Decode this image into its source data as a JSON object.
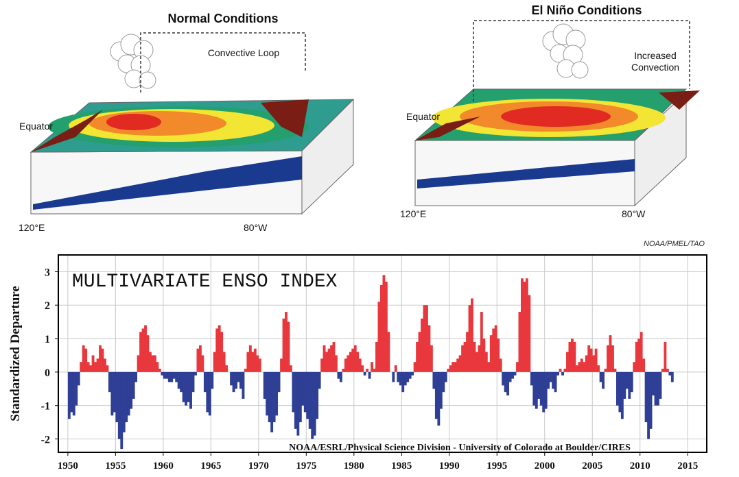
{
  "diagrams": [
    {
      "title": "Normal Conditions",
      "loop_label": [
        "Convective Loop"
      ],
      "equator_label": "Equator",
      "west_label": "120°E",
      "east_label": "80°W"
    },
    {
      "title": "El Niño Conditions",
      "loop_label": [
        "Increased",
        "Convection"
      ],
      "equator_label": "Equator",
      "west_label": "120°E",
      "east_label": "80°W"
    }
  ],
  "source": "NOAA/PMEL/TAO",
  "chart_data": {
    "type": "bar",
    "title": "MULTIVARIATE ENSO INDEX",
    "y_label": "Standardized Departure",
    "annotation": "NOAA/ESRL/Physical Science Division - University of Colorado at Boulder/CIRES",
    "color_positive": "#e8383d",
    "color_negative": "#2e3f95",
    "grid": true,
    "xlim": [
      1949,
      2017
    ],
    "ylim": [
      -2.4,
      3.5
    ],
    "xticks": [
      1950,
      1955,
      1960,
      1965,
      1970,
      1975,
      1980,
      1985,
      1990,
      1995,
      2000,
      2005,
      2010,
      2015
    ],
    "yticks": [
      -2,
      -1,
      0,
      1,
      2,
      3
    ],
    "x": [
      1950,
      1950.25,
      1950.5,
      1950.75,
      1951,
      1951.25,
      1951.5,
      1951.75,
      1952,
      1952.25,
      1952.5,
      1952.75,
      1953,
      1953.25,
      1953.5,
      1953.75,
      1954,
      1954.25,
      1954.5,
      1954.75,
      1955,
      1955.25,
      1955.5,
      1955.75,
      1956,
      1956.25,
      1956.5,
      1956.75,
      1957,
      1957.25,
      1957.5,
      1957.75,
      1958,
      1958.25,
      1958.5,
      1958.75,
      1959,
      1959.25,
      1959.5,
      1959.75,
      1960,
      1960.25,
      1960.5,
      1960.75,
      1961,
      1961.25,
      1961.5,
      1961.75,
      1962,
      1962.25,
      1962.5,
      1962.75,
      1963,
      1963.25,
      1963.5,
      1963.75,
      1964,
      1964.25,
      1964.5,
      1964.75,
      1965,
      1965.25,
      1965.5,
      1965.75,
      1966,
      1966.25,
      1966.5,
      1966.75,
      1967,
      1967.25,
      1967.5,
      1967.75,
      1968,
      1968.25,
      1968.5,
      1968.75,
      1969,
      1969.25,
      1969.5,
      1969.75,
      1970,
      1970.25,
      1970.5,
      1970.75,
      1971,
      1971.25,
      1971.5,
      1971.75,
      1972,
      1972.25,
      1972.5,
      1972.75,
      1973,
      1973.25,
      1973.5,
      1973.75,
      1974,
      1974.25,
      1974.5,
      1974.75,
      1975,
      1975.25,
      1975.5,
      1975.75,
      1976,
      1976.25,
      1976.5,
      1976.75,
      1977,
      1977.25,
      1977.5,
      1977.75,
      1978,
      1978.25,
      1978.5,
      1978.75,
      1979,
      1979.25,
      1979.5,
      1979.75,
      1980,
      1980.25,
      1980.5,
      1980.75,
      1981,
      1981.25,
      1981.5,
      1981.75,
      1982,
      1982.25,
      1982.5,
      1982.75,
      1983,
      1983.25,
      1983.5,
      1983.75,
      1984,
      1984.25,
      1984.5,
      1984.75,
      1985,
      1985.25,
      1985.5,
      1985.75,
      1986,
      1986.25,
      1986.5,
      1986.75,
      1987,
      1987.25,
      1987.5,
      1987.75,
      1988,
      1988.25,
      1988.5,
      1988.75,
      1989,
      1989.25,
      1989.5,
      1989.75,
      1990,
      1990.25,
      1990.5,
      1990.75,
      1991,
      1991.25,
      1991.5,
      1991.75,
      1992,
      1992.25,
      1992.5,
      1992.75,
      1993,
      1993.25,
      1993.5,
      1993.75,
      1994,
      1994.25,
      1994.5,
      1994.75,
      1995,
      1995.25,
      1995.5,
      1995.75,
      1996,
      1996.25,
      1996.5,
      1996.75,
      1997,
      1997.25,
      1997.5,
      1997.75,
      1998,
      1998.25,
      1998.5,
      1998.75,
      1999,
      1999.25,
      1999.5,
      1999.75,
      2000,
      2000.25,
      2000.5,
      2000.75,
      2001,
      2001.25,
      2001.5,
      2001.75,
      2002,
      2002.25,
      2002.5,
      2002.75,
      2003,
      2003.25,
      2003.5,
      2003.75,
      2004,
      2004.25,
      2004.5,
      2004.75,
      2005,
      2005.25,
      2005.5,
      2005.75,
      2006,
      2006.25,
      2006.5,
      2006.75,
      2007,
      2007.25,
      2007.5,
      2007.75,
      2008,
      2008.25,
      2008.5,
      2008.75,
      2009,
      2009.25,
      2009.5,
      2009.75,
      2010,
      2010.25,
      2010.5,
      2010.75,
      2011,
      2011.25,
      2011.5,
      2011.75,
      2012,
      2012.25,
      2012.5,
      2012.75,
      2013,
      2013.25
    ],
    "values": [
      -1.4,
      -1.2,
      -1.3,
      -1.0,
      -0.4,
      0.3,
      0.8,
      0.7,
      0.3,
      0.2,
      0.5,
      0.3,
      0.4,
      0.8,
      0.7,
      0.4,
      0.2,
      -0.6,
      -1.3,
      -1.2,
      -1.5,
      -2.0,
      -2.3,
      -1.8,
      -1.5,
      -1.3,
      -1.1,
      -0.8,
      -0.3,
      0.5,
      1.2,
      1.3,
      1.4,
      1.1,
      0.6,
      0.5,
      0.5,
      0.3,
      0.1,
      -0.1,
      -0.2,
      -0.2,
      -0.3,
      -0.3,
      -0.2,
      -0.3,
      -0.5,
      -0.6,
      -0.9,
      -1.0,
      -0.9,
      -1.1,
      -0.6,
      -0.1,
      0.7,
      0.8,
      0.5,
      -0.6,
      -1.2,
      -1.3,
      -0.5,
      0.6,
      1.3,
      1.4,
      1.2,
      0.6,
      0.2,
      0.0,
      -0.4,
      -0.6,
      -0.5,
      -0.3,
      -0.5,
      -0.8,
      0.1,
      0.6,
      0.8,
      0.6,
      0.7,
      0.5,
      0.4,
      0.0,
      -0.8,
      -1.3,
      -1.5,
      -1.8,
      -1.5,
      -1.3,
      -0.6,
      0.4,
      1.6,
      1.8,
      1.5,
      0.2,
      -1.2,
      -1.7,
      -1.9,
      -1.5,
      -1.0,
      -1.2,
      -1.4,
      -1.7,
      -2.0,
      -1.9,
      -1.4,
      -0.5,
      0.4,
      0.8,
      0.6,
      0.7,
      0.8,
      0.9,
      0.5,
      -0.2,
      -0.3,
      0.1,
      0.4,
      0.5,
      0.6,
      0.7,
      0.8,
      0.6,
      0.4,
      0.2,
      -0.1,
      0.1,
      -0.2,
      0.3,
      0.1,
      0.9,
      2.1,
      2.6,
      2.9,
      2.7,
      1.2,
      0.0,
      -0.3,
      0.2,
      -0.3,
      -0.4,
      -0.6,
      -0.4,
      -0.3,
      -0.2,
      -0.1,
      0.3,
      0.9,
      1.2,
      1.6,
      2.0,
      2.0,
      1.4,
      0.8,
      -0.5,
      -1.4,
      -1.6,
      -1.1,
      -0.6,
      -0.3,
      0.1,
      0.2,
      0.3,
      0.3,
      0.4,
      0.5,
      0.8,
      0.9,
      1.2,
      2.0,
      2.2,
      0.9,
      0.6,
      0.8,
      1.8,
      1.0,
      0.6,
      0.3,
      1.1,
      1.3,
      1.4,
      1.0,
      0.4,
      -0.4,
      -0.6,
      -0.7,
      -0.3,
      -0.2,
      -0.1,
      0.3,
      1.8,
      2.8,
      2.7,
      2.8,
      2.3,
      -0.4,
      -1.0,
      -1.1,
      -0.8,
      -1.0,
      -1.2,
      -1.1,
      -0.5,
      -0.3,
      -0.5,
      -0.6,
      -0.1,
      0.1,
      -0.1,
      0.1,
      0.6,
      0.9,
      1.0,
      0.9,
      0.2,
      0.3,
      0.4,
      0.3,
      0.5,
      0.8,
      0.7,
      0.5,
      0.7,
      0.2,
      -0.3,
      -0.5,
      0.1,
      0.8,
      1.1,
      0.8,
      0.1,
      -1.0,
      -1.2,
      -1.4,
      -0.8,
      -0.5,
      -0.8,
      -0.6,
      0.3,
      0.9,
      1.0,
      1.2,
      0.4,
      -1.5,
      -2.0,
      -1.7,
      -0.7,
      -1.0,
      -1.0,
      -0.8,
      0.1,
      0.9,
      0.1,
      -0.1,
      -0.3
    ]
  }
}
